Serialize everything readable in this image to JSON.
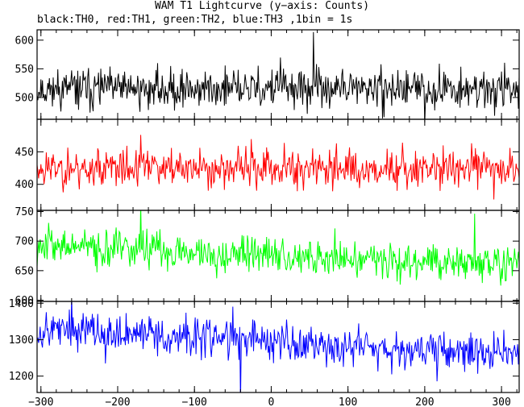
{
  "title": "WAM T1 Lightcurve (y−axis: Counts)",
  "subtitle": "black:TH0, red:TH1, green:TH2, blue:TH3 ,1bin = 1s",
  "chart_data": [
    {
      "type": "line",
      "color": "#000000",
      "x_range": [
        -305,
        323
      ],
      "ylim": [
        462,
        618
      ],
      "yticks": [
        500,
        550,
        600
      ],
      "x_ticks": [
        -300,
        -200,
        -100,
        0,
        100,
        200,
        300
      ],
      "x_tick_labels": [
        "",
        "",
        "",
        "",
        "",
        "",
        ""
      ],
      "mean": 515,
      "noise": 24,
      "trend": 0,
      "spikes": [
        {
          "x": 12,
          "amp": 55
        },
        {
          "x": 8,
          "amp": 40
        },
        {
          "x": 55,
          "amp": 55
        },
        {
          "x": 200,
          "amp": -55
        }
      ],
      "seed": 11
    },
    {
      "type": "line",
      "color": "#ff0000",
      "x_range": [
        -305,
        323
      ],
      "ylim": [
        360,
        500
      ],
      "yticks": [
        400,
        450
      ],
      "x_ticks": [
        -300,
        -200,
        -100,
        0,
        100,
        200,
        300
      ],
      "x_tick_labels": [
        "",
        "",
        "",
        "",
        "",
        "",
        ""
      ],
      "mean": 425,
      "noise": 21,
      "trend": 0,
      "spikes": [
        {
          "x": -170,
          "amp": 60
        },
        {
          "x": 290,
          "amp": -60
        }
      ],
      "seed": 23
    },
    {
      "type": "line",
      "color": "#00ff00",
      "x_range": [
        -305,
        323
      ],
      "ylim": [
        598,
        752
      ],
      "yticks": [
        600,
        650,
        700,
        750
      ],
      "x_ticks": [
        -300,
        -200,
        -100,
        0,
        100,
        200,
        300
      ],
      "x_tick_labels": [
        "",
        "",
        "",
        "",
        "",
        "",
        ""
      ],
      "mean": 676,
      "noise": 22,
      "trend": -16,
      "spikes": [
        {
          "x": -290,
          "amp": 70
        },
        {
          "x": -170,
          "amp": 65
        },
        {
          "x": 265,
          "amp": 60
        }
      ],
      "seed": 37
    },
    {
      "type": "line",
      "color": "#0000ff",
      "x_range": [
        -305,
        323
      ],
      "ylim": [
        1155,
        1405
      ],
      "yticks": [
        1200,
        1300,
        1400
      ],
      "x_ticks": [
        -300,
        -200,
        -100,
        0,
        100,
        200,
        300
      ],
      "x_tick_labels": [
        "−300",
        "−200",
        "−100",
        "0",
        "100",
        "200",
        "300"
      ],
      "mean": 1295,
      "noise": 38,
      "trend": -35,
      "spikes": [
        {
          "x": -50,
          "amp": 95
        },
        {
          "x": -40,
          "amp": -140
        },
        {
          "x": -260,
          "amp": 90
        }
      ],
      "seed": 53
    }
  ]
}
